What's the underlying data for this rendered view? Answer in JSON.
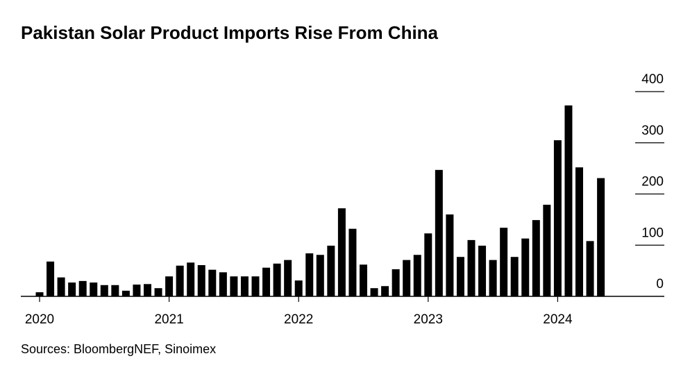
{
  "chart_data": {
    "type": "bar",
    "title": "Pakistan Solar Product Imports Rise From China",
    "source": "Sources: BloombergNEF, Sinoimex",
    "categories": [
      "2020",
      null,
      null,
      null,
      null,
      null,
      null,
      null,
      null,
      null,
      null,
      null,
      "2021",
      null,
      null,
      null,
      null,
      null,
      null,
      null,
      null,
      null,
      null,
      null,
      "2022",
      null,
      null,
      null,
      null,
      null,
      null,
      null,
      null,
      null,
      null,
      null,
      "2023",
      null,
      null,
      null,
      null,
      null,
      null,
      null,
      null,
      null,
      null,
      null,
      "2024",
      null,
      null,
      null,
      null
    ],
    "values": [
      8,
      68,
      37,
      27,
      30,
      27,
      22,
      22,
      11,
      23,
      24,
      16,
      39,
      60,
      66,
      61,
      52,
      47,
      39,
      39,
      39,
      56,
      64,
      71,
      31,
      84,
      81,
      99,
      172,
      132,
      62,
      16,
      20,
      53,
      71,
      81,
      123,
      247,
      160,
      77,
      110,
      99,
      71,
      134,
      77,
      113,
      149,
      179,
      305,
      373,
      252,
      108,
      231
    ],
    "color": "#000000",
    "ylim": [
      0,
      400
    ],
    "yticks": [
      0,
      100,
      200,
      300,
      400
    ],
    "grid": true
  }
}
